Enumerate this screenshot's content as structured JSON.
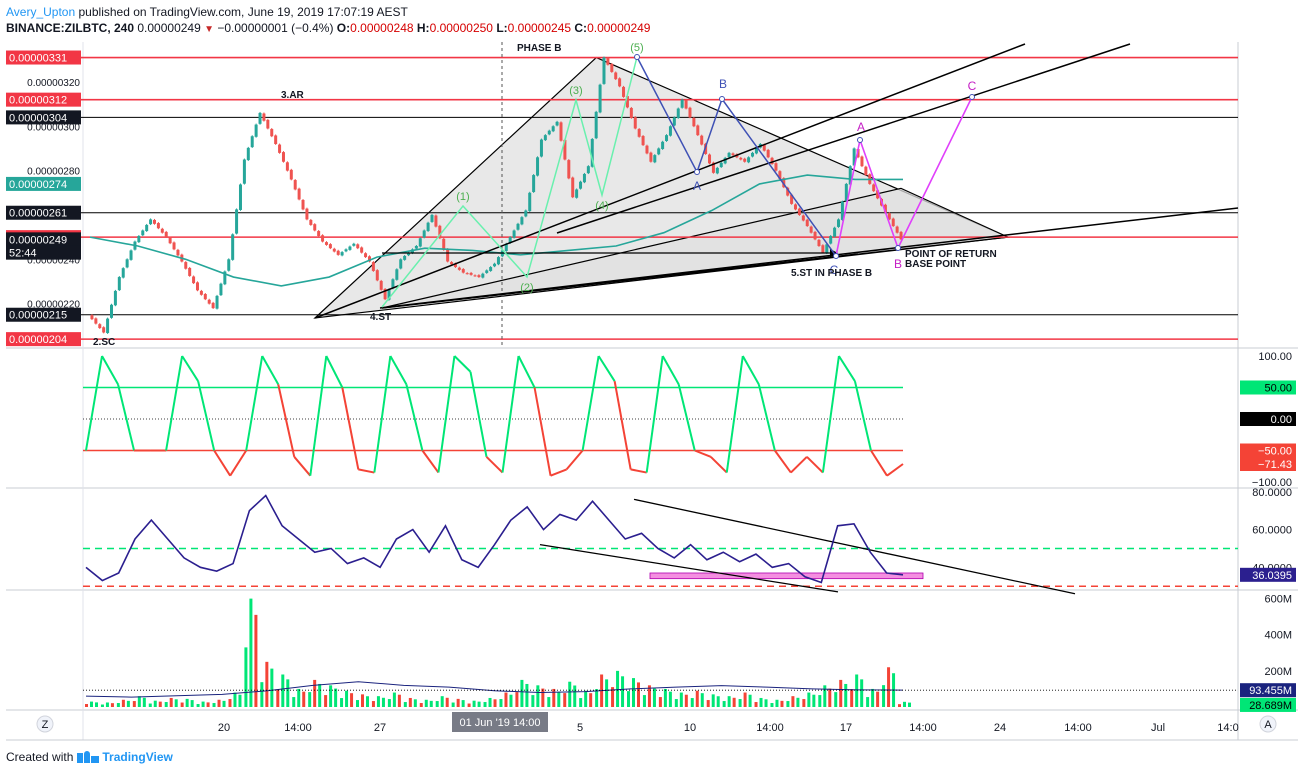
{
  "header": {
    "author": "Avery_Upton",
    "published": "published on TradingView.com, June 19, 2019 17:07:19 AEST",
    "symbol": "BINANCE:ZILBTC, 240",
    "last": "0.00000249",
    "down_marker": "▼",
    "change": "−0.00000001 (−0.4%)",
    "o_label": "O:",
    "o_val": "0.00000248",
    "h_label": "H:",
    "h_val": "0.00000250",
    "l_label": "L:",
    "l_val": "0.00000245",
    "c_label": "C:",
    "c_val": "0.00000249"
  },
  "footer": {
    "created_with": "Created with",
    "brand": "TradingView"
  },
  "toolbar": {
    "z_label": "Z",
    "a_label": "A"
  },
  "colors": {
    "up": "#26a69a",
    "down": "#ef5350",
    "bright_up": "#00e676",
    "bright_down": "#f44336",
    "hline": "#f23645",
    "wyckoff": "#000000",
    "elliott": "#4caf50",
    "abc_blue": "#3f51b5",
    "abc_magenta": "#e040fb",
    "rsi": "#2b1f8f",
    "ma": "#26a69a",
    "shade": "#e0e0e0"
  },
  "chart_data": [
    {
      "type": "candlestick",
      "pane": "price",
      "symbol": "BINANCE:ZILBTC",
      "timeframe": "240",
      "ylim": [
        2e-06,
        3.38e-06
      ],
      "x_ticks": [
        "20",
        "14:00",
        "27",
        "Jun",
        "5",
        "10",
        "14:00",
        "17",
        "14:00",
        "24",
        "14:00",
        "Jul",
        "14:0"
      ],
      "crosshair_label": "01 Jun '19  14:00",
      "y_ticks": [
        "0.00000320",
        "0.00000300",
        "0.00000280",
        "0.00000260",
        "0.00000240",
        "0.00000220",
        "0.00000200"
      ],
      "price_labels": [
        {
          "text": "0.00000331",
          "value": 3.31e-06,
          "style": "red"
        },
        {
          "text": "0.00000312",
          "value": 3.12e-06,
          "style": "red"
        },
        {
          "text": "0.00000304",
          "value": 3.04e-06,
          "style": "black"
        },
        {
          "text": "0.00000274",
          "value": 2.74e-06,
          "style": "teal"
        },
        {
          "text": "0.00000261",
          "value": 2.61e-06,
          "style": "black"
        },
        {
          "text": "0.00000250",
          "value": 2.5e-06,
          "style": "red"
        },
        {
          "text": "0.00000249",
          "value": 2.49e-06,
          "style": "black"
        },
        {
          "text": "52:44",
          "value": 2.43e-06,
          "style": "black"
        },
        {
          "text": "0.00000215",
          "value": 2.15e-06,
          "style": "black"
        },
        {
          "text": "0.00000204",
          "value": 2.04e-06,
          "style": "red"
        }
      ],
      "horizontal_levels": [
        {
          "value": 3.31e-06,
          "color": "red"
        },
        {
          "value": 3.12e-06,
          "color": "red"
        },
        {
          "value": 3.04e-06,
          "color": "black"
        },
        {
          "value": 2.61e-06,
          "color": "black"
        },
        {
          "value": 2.5e-06,
          "color": "red"
        },
        {
          "value": 2.15e-06,
          "color": "black"
        },
        {
          "value": 2.04e-06,
          "color": "red"
        }
      ],
      "annotations": {
        "wyckoff": [
          "2.SC",
          "3.AR",
          "4.ST",
          "PHASE B",
          "5.ST IN PHASE B",
          "POINT OF RETURN",
          "BASE POINT"
        ],
        "elliott": [
          "(1)",
          "(2)",
          "(3)",
          "(4)",
          "(5)"
        ],
        "abc_blue": [
          "A",
          "B",
          "C"
        ],
        "abc_magenta": [
          "A",
          "B",
          "C"
        ]
      },
      "series": [
        {
          "name": "price",
          "values": [
            2.15e-06,
            2.07e-06,
            2.32e-06,
            2.48e-06,
            2.58e-06,
            2.5e-06,
            2.39e-06,
            2.26e-06,
            2.18e-06,
            2.4e-06,
            2.85e-06,
            3.06e-06,
            2.92e-06,
            2.76e-06,
            2.58e-06,
            2.48e-06,
            2.42e-06,
            2.47e-06,
            2.39e-06,
            2.22e-06,
            2.4e-06,
            2.46e-06,
            2.6e-06,
            2.39e-06,
            2.34e-06,
            2.32e-06,
            2.38e-06,
            2.5e-06,
            2.62e-06,
            2.94e-06,
            3.02e-06,
            2.68e-06,
            2.82e-06,
            3.31e-06,
            3.18e-06,
            2.99e-06,
            2.84e-06,
            2.96e-06,
            3.12e-06,
            2.96e-06,
            2.79e-06,
            2.88e-06,
            2.84e-06,
            2.92e-06,
            2.8e-06,
            2.65e-06,
            2.55e-06,
            2.43e-06,
            2.58e-06,
            2.9e-06,
            2.74e-06,
            2.61e-06,
            2.49e-06
          ]
        },
        {
          "name": "moving average",
          "values": [
            2.5e-06,
            2.46e-06,
            2.4e-06,
            2.32e-06,
            2.28e-06,
            2.32e-06,
            2.41e-06,
            2.45e-06,
            2.44e-06,
            2.42e-06,
            2.44e-06,
            2.46e-06,
            2.52e-06,
            2.62e-06,
            2.74e-06,
            2.78e-06,
            2.76e-06,
            2.76e-06
          ]
        }
      ]
    },
    {
      "type": "line",
      "pane": "oscillator",
      "ylim": [
        -100,
        100
      ],
      "y_ticks": [
        "100.00",
        "50.00",
        "0.00",
        "−50.00",
        "−71.43",
        "−100.00"
      ],
      "levels": [
        50,
        0,
        -50
      ],
      "last_value": -71.43,
      "series": [
        {
          "name": "oscillator",
          "values": [
            -50,
            100,
            55,
            -50,
            -50,
            -50,
            100,
            60,
            -50,
            -90,
            -50,
            100,
            55,
            -60,
            -90,
            100,
            50,
            -80,
            -85,
            100,
            55,
            -50,
            -85,
            100,
            75,
            -60,
            -85,
            100,
            50,
            -90,
            -80,
            -50,
            100,
            60,
            -80,
            -85,
            100,
            55,
            -50,
            -60,
            -85,
            100,
            55,
            -50,
            -85,
            -60,
            -85,
            100,
            60,
            -50,
            -90,
            -71.43
          ]
        }
      ]
    },
    {
      "type": "line",
      "pane": "rsi",
      "ylim": [
        28,
        82
      ],
      "y_ticks": [
        "80.0000",
        "60.0000",
        "40.0000"
      ],
      "levels": [
        50,
        30
      ],
      "last_value_label": "36.0395",
      "series": [
        {
          "name": "RSI",
          "values": [
            40,
            33,
            37,
            55,
            65,
            55,
            45,
            40,
            38,
            42,
            70,
            78,
            62,
            55,
            48,
            50,
            42,
            45,
            40,
            55,
            60,
            48,
            62,
            44,
            40,
            52,
            65,
            72,
            60,
            68,
            65,
            75,
            65,
            55,
            58,
            50,
            45,
            52,
            44,
            48,
            43,
            47,
            40,
            42,
            35,
            32,
            62,
            63,
            48,
            37,
            36.04
          ]
        }
      ]
    },
    {
      "type": "bar",
      "pane": "volume",
      "ylim": [
        0,
        620
      ],
      "y_ticks": [
        "600M",
        "400M",
        "200M"
      ],
      "value_labels": [
        "93.455M",
        "28.689M"
      ],
      "series": [
        {
          "name": "volume (M)",
          "values": [
            30,
            25,
            40,
            60,
            35,
            50,
            45,
            30,
            40,
            80,
            600,
            250,
            180,
            100,
            150,
            120,
            90,
            70,
            60,
            80,
            50,
            40,
            60,
            45,
            35,
            50,
            80,
            150,
            120,
            100,
            140,
            90,
            180,
            200,
            160,
            120,
            100,
            80,
            90,
            70,
            60,
            80,
            50,
            40,
            60,
            80,
            120,
            150,
            180,
            100,
            220,
            28.689
          ]
        },
        {
          "name": "volume MA (M)",
          "values": [
            60,
            55,
            62,
            70,
            90,
            120,
            140,
            120,
            110,
            90,
            80,
            85,
            100,
            110,
            118,
            110,
            100,
            95,
            93.455
          ]
        }
      ]
    }
  ]
}
